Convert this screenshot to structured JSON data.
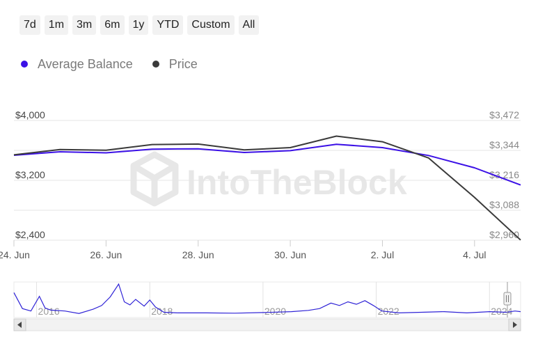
{
  "range_buttons": [
    "7d",
    "1m",
    "3m",
    "6m",
    "1y",
    "YTD",
    "Custom",
    "All"
  ],
  "colors": {
    "average_balance": "#3b10e6",
    "price": "#3a3a3a",
    "grid": "#e6e6e6",
    "navigator_line": "#2e22d6"
  },
  "watermark": "IntoTheBlock",
  "chart_data": {
    "type": "line",
    "x_labels": [
      "24. Jun",
      "26. Jun",
      "28. Jun",
      "30. Jun",
      "2. Jul",
      "4. Jul"
    ],
    "x_label_days": [
      0,
      2,
      4,
      6,
      8,
      10
    ],
    "xlim": [
      0,
      11
    ],
    "left_axis": {
      "ticks": [
        "$4,000",
        "$3,200",
        "$2,400"
      ],
      "values": [
        4000,
        3200,
        2400
      ],
      "ylim": [
        2400,
        4000
      ]
    },
    "right_axis": {
      "ticks": [
        "$3,472",
        "$3,344",
        "$3,216",
        "$3,088",
        "$2,960"
      ],
      "values": [
        3472,
        3344,
        3216,
        3088,
        2960
      ],
      "ylim": [
        2960,
        3472
      ]
    },
    "series": [
      {
        "name": "Average Balance",
        "axis": "left",
        "x": [
          0,
          1,
          2,
          3,
          4,
          5,
          6,
          7,
          8,
          9,
          10,
          11
        ],
        "values": [
          3535,
          3581,
          3567,
          3617,
          3621,
          3572,
          3596,
          3682,
          3637,
          3532,
          3367,
          3138
        ]
      },
      {
        "name": "Price",
        "axis": "right",
        "x": [
          0,
          1,
          2,
          3,
          4,
          5,
          6,
          7,
          8,
          9,
          10,
          11
        ],
        "values": [
          3325,
          3348,
          3345,
          3369,
          3371,
          3346,
          3356,
          3405,
          3381,
          3312,
          3143,
          2961
        ]
      }
    ],
    "grid": true,
    "legend_position": "top-left",
    "navigator": {
      "year_labels": [
        "2016",
        "2018",
        "2020",
        "2022",
        "2024"
      ],
      "year_positions": [
        2016,
        2018,
        2020,
        2022,
        2024
      ],
      "xlim": [
        2015.6,
        2024.55
      ],
      "x": [
        2015.6,
        2015.75,
        2015.9,
        2016.05,
        2016.15,
        2016.25,
        2016.5,
        2016.75,
        2017.0,
        2017.15,
        2017.3,
        2017.45,
        2017.55,
        2017.65,
        2017.75,
        2017.9,
        2018.0,
        2018.1,
        2018.25,
        2018.5,
        2019.0,
        2019.5,
        2020.0,
        2020.5,
        2020.8,
        2021.0,
        2021.2,
        2021.35,
        2021.5,
        2021.65,
        2021.8,
        2021.95,
        2022.1,
        2022.4,
        2022.8,
        2023.2,
        2023.6,
        2024.0,
        2024.3,
        2024.45,
        2024.55
      ],
      "values": [
        0.72,
        0.2,
        0.12,
        0.6,
        0.22,
        0.15,
        0.12,
        0.04,
        0.18,
        0.3,
        0.58,
        1.0,
        0.42,
        0.32,
        0.5,
        0.28,
        0.48,
        0.25,
        0.08,
        0.06,
        0.06,
        0.05,
        0.07,
        0.1,
        0.14,
        0.2,
        0.38,
        0.3,
        0.42,
        0.34,
        0.46,
        0.3,
        0.12,
        0.06,
        0.08,
        0.1,
        0.06,
        0.1,
        0.08,
        0.12,
        0.1
      ]
    }
  }
}
